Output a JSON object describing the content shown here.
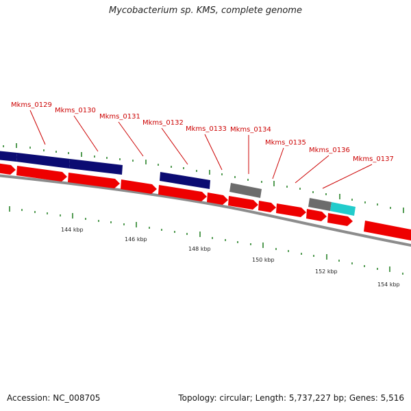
{
  "title": "Mycobacterium sp. KMS, complete genome",
  "footer": {
    "accession": "Accession: NC_008705",
    "summary": "Topology: circular; Length: 5,737,227 bp; Genes: 5,516"
  },
  "colors": {
    "cds_forward": "#ee0000",
    "cds_navy": "#0b0b72",
    "cds_gray": "#6c6c6c",
    "cds_cyan": "#22cccc",
    "backbone": "#8c8c8c",
    "tick": "#1a7a1a",
    "label": "#cc0000"
  },
  "gene_labels": [
    "Mkms_0129",
    "Mkms_0130",
    "Mkms_0131",
    "Mkms_0132",
    "Mkms_0133",
    "Mkms_0134",
    "Mkms_0135",
    "Mkms_0136",
    "Mkms_0137"
  ],
  "kbp_labels": [
    "144 kbp",
    "146 kbp",
    "148 kbp",
    "150 kbp",
    "152 kbp",
    "154 kbp"
  ]
}
